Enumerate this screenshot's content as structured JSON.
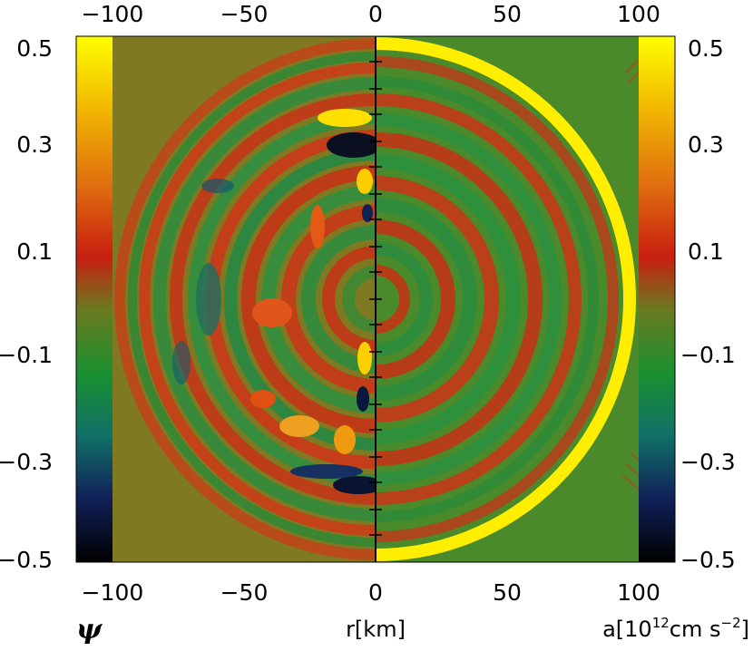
{
  "figure": {
    "top_axis_ticks": [
      "−100",
      "−50",
      "0",
      "50",
      "100"
    ],
    "bottom_axis_ticks": [
      "−100",
      "−50",
      "0",
      "50",
      "100"
    ],
    "left_colorbar_ticks": [
      "0.5",
      "0.3",
      "0.1",
      "−0.1",
      "−0.3",
      "−0.5"
    ],
    "right_colorbar_ticks": [
      "0.5",
      "0.3",
      "0.1",
      "−0.1",
      "−0.3",
      "−0.5"
    ],
    "xlabel": "r[km]",
    "left_quantity": "ψ",
    "right_quantity_prefix": "a[10",
    "right_quantity_exp": "12",
    "right_quantity_mid": "cm s",
    "right_quantity_exp2": "−2",
    "right_quantity_suffix": "]"
  },
  "colors": {
    "background": "#8a7a1c",
    "ring_red": "#c8321a",
    "ring_green": "#2f8f3a",
    "shock_yellow": "#ffee00",
    "divider": "#000000"
  },
  "colorbar_stops": [
    "#ffff00",
    "#f0a000",
    "#e06010",
    "#c82010",
    "#6a7a20",
    "#1a9030",
    "#107070",
    "#102060",
    "#000000"
  ]
}
